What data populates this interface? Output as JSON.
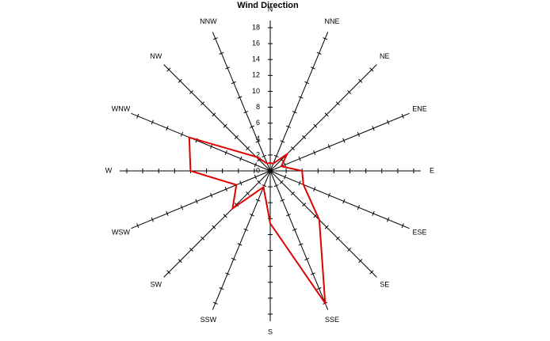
{
  "chart_data": {
    "type": "radar",
    "title": "Wind Direction",
    "categories": [
      "N",
      "NNE",
      "NE",
      "ENE",
      "E",
      "ESE",
      "SE",
      "SSE",
      "S",
      "SSW",
      "SW",
      "WSW",
      "W",
      "WNW",
      "NW",
      "NNW"
    ],
    "values": [
      1,
      1,
      3,
      1.5,
      4,
      4.5,
      8.7,
      18,
      6.6,
      2.2,
      6.7,
      4.6,
      10,
      11,
      2.5,
      1
    ],
    "color": "#e00000",
    "rlim": [
      0,
      18
    ],
    "rticks": [
      0,
      2,
      4,
      6,
      8,
      10,
      12,
      14,
      16,
      18
    ]
  }
}
